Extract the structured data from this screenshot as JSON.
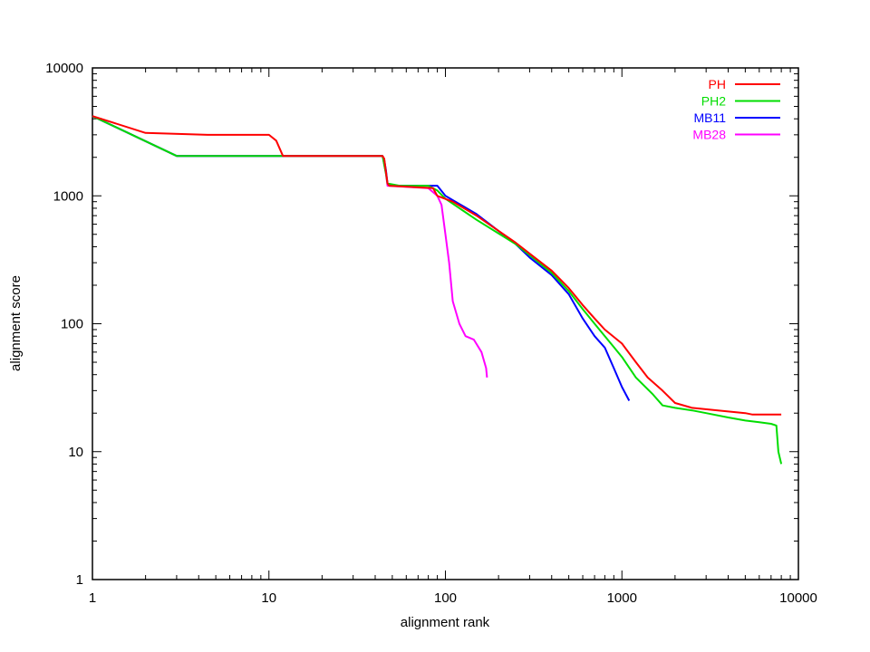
{
  "chart_data": {
    "type": "line",
    "title": "",
    "xlabel": "alignment rank",
    "ylabel": "alignment score",
    "x_scale": "log",
    "y_scale": "log",
    "xlim": [
      1,
      10000
    ],
    "ylim": [
      1,
      10000
    ],
    "x_ticks": [
      1,
      10,
      100,
      1000,
      10000
    ],
    "y_ticks": [
      1,
      10,
      100,
      1000,
      10000
    ],
    "x_tick_labels": [
      "1",
      "10",
      "100",
      "1000",
      "10000"
    ],
    "y_tick_labels": [
      "1",
      "10",
      "100",
      "1000",
      "10000"
    ],
    "grid": false,
    "legend_position": "top-right",
    "series": [
      {
        "name": "PH",
        "color": "#ff0000",
        "points": [
          [
            1,
            4200
          ],
          [
            2,
            3100
          ],
          [
            4.5,
            3000
          ],
          [
            10,
            3000
          ],
          [
            11,
            2700
          ],
          [
            12,
            2050
          ],
          [
            44,
            2050
          ],
          [
            45,
            1950
          ],
          [
            46,
            1550
          ],
          [
            47,
            1250
          ],
          [
            48,
            1200
          ],
          [
            85,
            1150
          ],
          [
            90,
            1000
          ],
          [
            110,
            900
          ],
          [
            150,
            700
          ],
          [
            250,
            430
          ],
          [
            320,
            330
          ],
          [
            400,
            260
          ],
          [
            500,
            190
          ],
          [
            600,
            140
          ],
          [
            700,
            110
          ],
          [
            800,
            90
          ],
          [
            1000,
            70
          ],
          [
            1200,
            50
          ],
          [
            1400,
            38
          ],
          [
            1700,
            30
          ],
          [
            2000,
            24
          ],
          [
            2500,
            22
          ],
          [
            3500,
            21
          ],
          [
            5000,
            20
          ],
          [
            5500,
            19.5
          ],
          [
            8000,
            19.5
          ]
        ]
      },
      {
        "name": "PH2",
        "color": "#00dd00",
        "points": [
          [
            1,
            4200
          ],
          [
            3,
            2050
          ],
          [
            44,
            2050
          ],
          [
            46,
            1500
          ],
          [
            47,
            1250
          ],
          [
            55,
            1200
          ],
          [
            80,
            1200
          ],
          [
            90,
            1100
          ],
          [
            100,
            950
          ],
          [
            150,
            650
          ],
          [
            250,
            420
          ],
          [
            320,
            320
          ],
          [
            400,
            250
          ],
          [
            500,
            180
          ],
          [
            600,
            130
          ],
          [
            700,
            100
          ],
          [
            800,
            80
          ],
          [
            1000,
            55
          ],
          [
            1200,
            38
          ],
          [
            1500,
            28
          ],
          [
            1700,
            23
          ],
          [
            2000,
            22
          ],
          [
            2500,
            21
          ],
          [
            3000,
            20
          ],
          [
            4000,
            18.5
          ],
          [
            5000,
            17.5
          ],
          [
            6000,
            17
          ],
          [
            7000,
            16.5
          ],
          [
            7500,
            16
          ],
          [
            7700,
            10
          ],
          [
            8000,
            8
          ]
        ]
      },
      {
        "name": "MB11",
        "color": "#0000ff",
        "points": [
          [
            1,
            4200
          ],
          [
            3,
            2050
          ],
          [
            44,
            2050
          ],
          [
            45,
            1900
          ],
          [
            46,
            1600
          ],
          [
            47,
            1250
          ],
          [
            50,
            1200
          ],
          [
            90,
            1200
          ],
          [
            100,
            1000
          ],
          [
            150,
            720
          ],
          [
            250,
            420
          ],
          [
            300,
            330
          ],
          [
            400,
            240
          ],
          [
            500,
            170
          ],
          [
            600,
            110
          ],
          [
            700,
            80
          ],
          [
            800,
            65
          ],
          [
            900,
            45
          ],
          [
            1000,
            32
          ],
          [
            1100,
            25
          ]
        ]
      },
      {
        "name": "MB28",
        "color": "#ff00ff",
        "points": [
          [
            1,
            4200
          ],
          [
            3,
            2050
          ],
          [
            44,
            2050
          ],
          [
            46,
            1500
          ],
          [
            47,
            1200
          ],
          [
            80,
            1150
          ],
          [
            90,
            1000
          ],
          [
            95,
            850
          ],
          [
            100,
            500
          ],
          [
            105,
            300
          ],
          [
            110,
            150
          ],
          [
            120,
            100
          ],
          [
            130,
            80
          ],
          [
            145,
            75
          ],
          [
            160,
            60
          ],
          [
            170,
            45
          ],
          [
            172,
            38
          ]
        ]
      }
    ]
  }
}
